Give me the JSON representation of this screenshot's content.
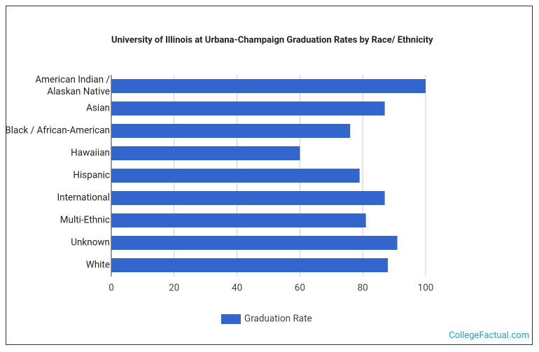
{
  "chart_data": {
    "type": "bar",
    "orientation": "horizontal",
    "title": "University of Illinois at Urbana-Champaign Graduation Rates by Race/ Ethnicity",
    "categories": [
      "American Indian / Alaskan Native",
      "Asian",
      "Black / African-American",
      "Hawaiian",
      "Hispanic",
      "International",
      "Multi-Ethnic",
      "Unknown",
      "White"
    ],
    "series": [
      {
        "name": "Graduation Rate",
        "color": "#3366cc",
        "values": [
          100,
          87,
          76,
          60,
          79,
          87,
          81,
          91,
          88
        ]
      }
    ],
    "xlim": [
      0,
      100
    ],
    "xticks": [
      0,
      20,
      40,
      60,
      80,
      100
    ],
    "grid": true,
    "legend": "bottom",
    "source": "CollegeFactual.com"
  }
}
